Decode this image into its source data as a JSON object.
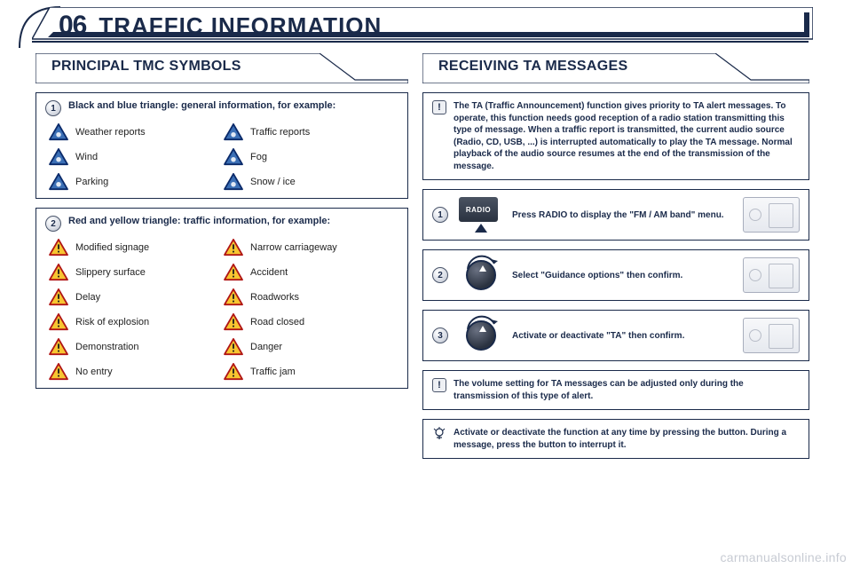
{
  "colors": {
    "navy": "#1a2a4a",
    "panel_border": "#1a2a4a",
    "text": "#222222",
    "bg": "#ffffff",
    "watermark": "#c7cbd3",
    "blue_tri_border": "#0a2a6a",
    "blue_tri_fill": "#3b6fb5",
    "red_tri_border": "#b01515",
    "yellow_tri_fill": "#f7c531"
  },
  "header": {
    "number": "06",
    "title": "TRAFFIC INFORMATION"
  },
  "left": {
    "section_title": "PRINCIPAL TMC SYMBOLS",
    "group1": {
      "label": "Black and blue triangle: general information, for example:",
      "items": [
        {
          "label": "Weather reports"
        },
        {
          "label": "Traffic reports"
        },
        {
          "label": "Wind"
        },
        {
          "label": "Fog"
        },
        {
          "label": "Parking"
        },
        {
          "label": "Snow / ice"
        }
      ]
    },
    "group2": {
      "label": "Red and yellow triangle: traffic information, for example:",
      "items": [
        {
          "label": "Modified signage"
        },
        {
          "label": "Narrow carriageway"
        },
        {
          "label": "Slippery surface"
        },
        {
          "label": "Accident"
        },
        {
          "label": "Delay"
        },
        {
          "label": "Roadworks"
        },
        {
          "label": "Risk of explosion"
        },
        {
          "label": "Road closed"
        },
        {
          "label": "Demonstration"
        },
        {
          "label": "Danger"
        },
        {
          "label": "No entry"
        },
        {
          "label": "Traffic jam"
        }
      ]
    }
  },
  "right": {
    "section_title": "RECEIVING TA MESSAGES",
    "intro": "The TA (Traffic Announcement) function gives priority to TA alert messages. To operate, this function needs good reception of a radio station transmitting this type of message. When a traffic report is transmitted, the current audio source (Radio, CD, USB, ...) is interrupted automatically to play the TA message. Normal playback of the audio source resumes at the end of the transmission of the message.",
    "steps": [
      {
        "n": "1",
        "btn": "RADIO",
        "text": "Press RADIO to display the \"FM / AM band\" menu."
      },
      {
        "n": "2",
        "text": "Select \"Guidance options\" then confirm."
      },
      {
        "n": "3",
        "text": "Activate or deactivate \"TA\" then confirm."
      }
    ],
    "note": "The volume setting for TA messages can be adjusted only during the transmission of this type of alert.",
    "tip": "Activate or deactivate the function at any time by pressing the button. During a message, press the button to interrupt it."
  },
  "watermark": "carmanualsonline.info"
}
